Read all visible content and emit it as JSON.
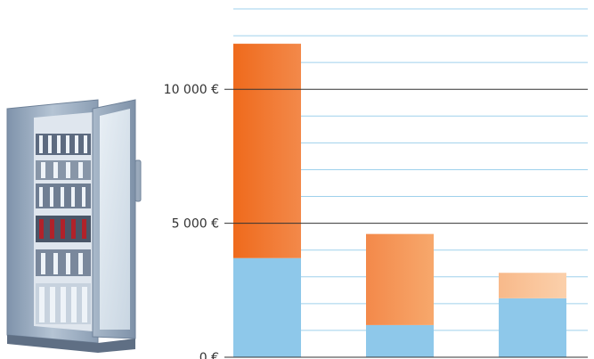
{
  "chart_data": {
    "type": "bar",
    "stacked": true,
    "categories": [
      "",
      "",
      ""
    ],
    "series": [
      {
        "values": [
          3700,
          1200,
          2200
        ],
        "color": "#8ec8ea"
      },
      {
        "values": [
          8000,
          3400,
          950
        ],
        "colors": [
          "#f07a2e",
          "#f59a5f",
          "#f9c49a"
        ]
      }
    ],
    "yticks": [
      {
        "value": 0,
        "label": "0 €"
      },
      {
        "value": 5000,
        "label": "5 000 €"
      },
      {
        "value": 10000,
        "label": "10 000 €"
      }
    ],
    "ylim": [
      0,
      13000
    ],
    "minor_grid_step": 1000,
    "grid": true
  }
}
